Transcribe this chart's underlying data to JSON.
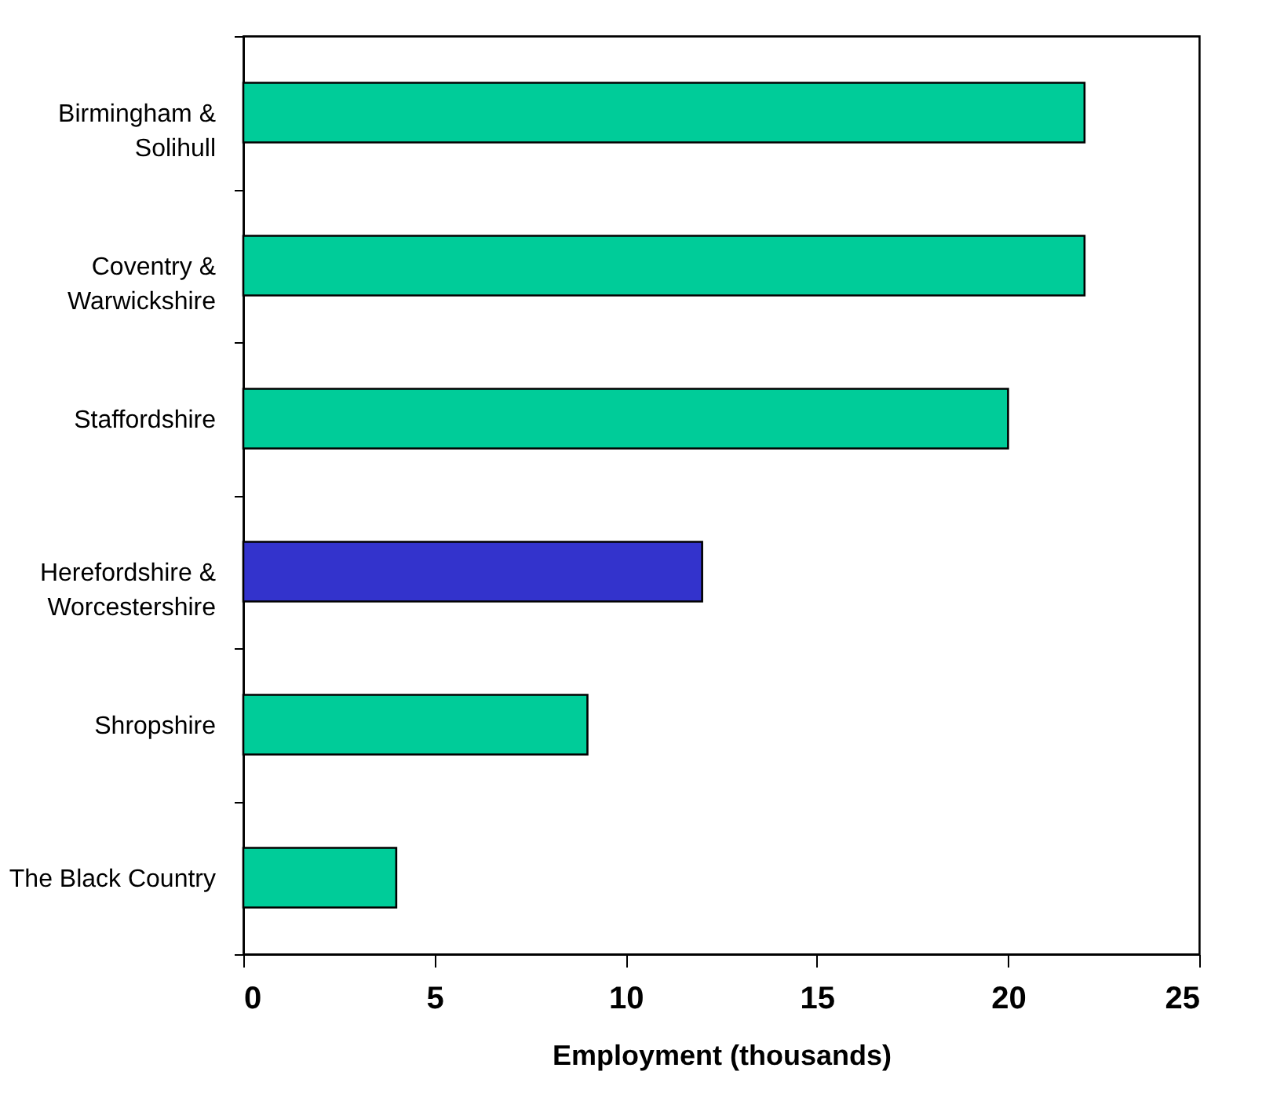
{
  "chart_data": {
    "type": "bar",
    "orientation": "horizontal",
    "categories": [
      "Birmingham &\nSolihull",
      "Coventry &\nWarwickshire",
      "Staffordshire",
      "Herefordshire &\nWorcestershire",
      "Shropshire",
      "The Black Country"
    ],
    "values": [
      22,
      22,
      20,
      12,
      9,
      4
    ],
    "colors": [
      "#00cc99",
      "#00cc99",
      "#00cc99",
      "#3333cc",
      "#00cc99",
      "#00cc99"
    ],
    "xlabel": "Employment (thousands)",
    "xlim": [
      0,
      25
    ],
    "xticks": [
      0,
      5,
      10,
      15,
      20,
      25
    ],
    "grid": false
  }
}
